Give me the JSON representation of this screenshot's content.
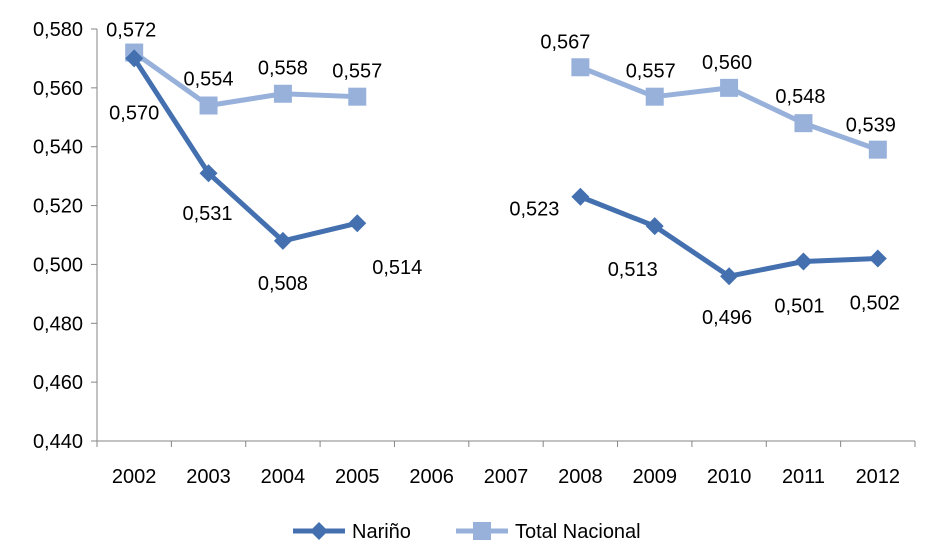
{
  "chart_data": {
    "type": "line",
    "title": "",
    "xlabel": "",
    "ylabel": "",
    "categories": [
      "2002",
      "2003",
      "2004",
      "2005",
      "2006",
      "2007",
      "2008",
      "2009",
      "2010",
      "2011",
      "2012"
    ],
    "ylim": [
      0.44,
      0.58
    ],
    "yticks": [
      "0,440",
      "0,460",
      "0,480",
      "0,500",
      "0,520",
      "0,540",
      "0,560",
      "0,580"
    ],
    "grid": false,
    "legend": "bottom-center",
    "series": [
      {
        "name": "Nariño",
        "color": "#4470B0",
        "marker": "diamond",
        "values": [
          0.57,
          0.531,
          0.508,
          0.514,
          null,
          null,
          0.523,
          0.513,
          0.496,
          0.501,
          0.502
        ],
        "labels": [
          "0,570",
          "0,531",
          "0,508",
          "0,514",
          null,
          null,
          "0,523",
          "0,513",
          "0,496",
          "0,501",
          "0,502"
        ]
      },
      {
        "name": "Total Nacional",
        "color": "#97B1DB",
        "marker": "square",
        "values": [
          0.572,
          0.554,
          0.558,
          0.557,
          null,
          null,
          0.567,
          0.557,
          0.56,
          0.548,
          0.539
        ],
        "labels": [
          "0,572",
          "0,554",
          "0,558",
          "0,557",
          null,
          null,
          "0,567",
          "0,557",
          "0,560",
          "0,548",
          "0,539"
        ]
      }
    ]
  }
}
